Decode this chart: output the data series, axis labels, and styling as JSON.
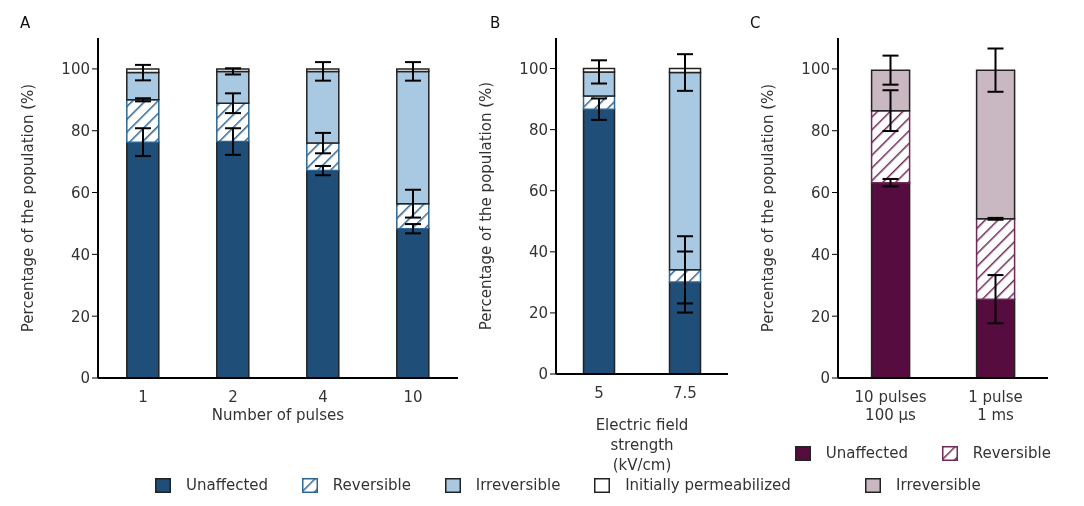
{
  "chart_data": [
    {
      "type": "bar",
      "title": "A",
      "categories": [
        "1",
        "2",
        "4",
        "10"
      ],
      "xlabel": "Number of pulses",
      "ylabel": "Percentage of the population (%)",
      "stacked": true,
      "ylim": [
        0,
        110
      ],
      "yticks": [
        0,
        20,
        40,
        60,
        80,
        100
      ],
      "grid": false,
      "legend": "bottom",
      "series": [
        {
          "name": "Unaffected",
          "color": "#1f4e79",
          "values": [
            76.3,
            76.5,
            67.1,
            48.3
          ],
          "errors": [
            4.5,
            4.3,
            1.5,
            1.5
          ]
        },
        {
          "name": "Reversible",
          "color": "#2e6691",
          "values": [
            13.7,
            12.4,
            8.9,
            8.1
          ],
          "errors": [
            0.5,
            3.2,
            3.3,
            4.5
          ]
        },
        {
          "name": "Irreversible",
          "color": "#a9c9e3",
          "values": [
            8.8,
            10.3,
            23.2,
            42.8
          ],
          "errors": [
            2.5,
            1,
            3,
            3
          ]
        },
        {
          "name": "Initially permeabilized",
          "color": "#ffffff",
          "values": [
            1.2,
            0.8,
            0.8,
            0.8
          ]
        }
      ]
    },
    {
      "type": "bar",
      "title": "B",
      "categories": [
        "5",
        "7.5"
      ],
      "xlabel": "Electric field\nstrength\n(kV/cm)",
      "ylabel": "Percentage of the population (%)",
      "stacked": true,
      "ylim": [
        0,
        110
      ],
      "yticks": [
        0,
        20,
        40,
        60,
        80,
        100
      ],
      "grid": false,
      "legend": false,
      "series": [
        {
          "color": "#1f4e79",
          "values": [
            86.7,
            30.1
          ],
          "errors": [
            3.5,
            10
          ]
        },
        {
          "color": "#2e6691",
          "values": [
            4.3,
            4
          ],
          "errors": [
            null,
            11
          ]
        },
        {
          "color": "#a9c9e3",
          "values": [
            7.9,
            64.6
          ],
          "errors": [
            3.8,
            6
          ]
        },
        {
          "color": "#ffffff",
          "values": [
            1.1,
            1.3
          ]
        }
      ]
    },
    {
      "type": "bar",
      "title": "C",
      "categories": [
        "10 pulses\n100 µs",
        "1 pulse\n1 ms"
      ],
      "ylabel": "Percentage of the population (%)",
      "stacked": true,
      "ylim": [
        0,
        110
      ],
      "yticks": [
        0,
        20,
        40,
        60,
        80,
        100
      ],
      "grid": false,
      "legend": "bottom",
      "series": [
        {
          "name": "Unaffected",
          "color": "#570c3f",
          "values": [
            63.2,
            25.5
          ],
          "errors": [
            1.2,
            7.8
          ]
        },
        {
          "name": "Reversible",
          "color": "#6e2a58",
          "values": [
            23.3,
            26
          ],
          "errors": [
            6.6,
            0.3
          ]
        },
        {
          "name": "Irreversible",
          "color": "#c9b8c1",
          "values": [
            13.1,
            48.1
          ],
          "errors": [
            4.7,
            7
          ]
        }
      ]
    }
  ]
}
